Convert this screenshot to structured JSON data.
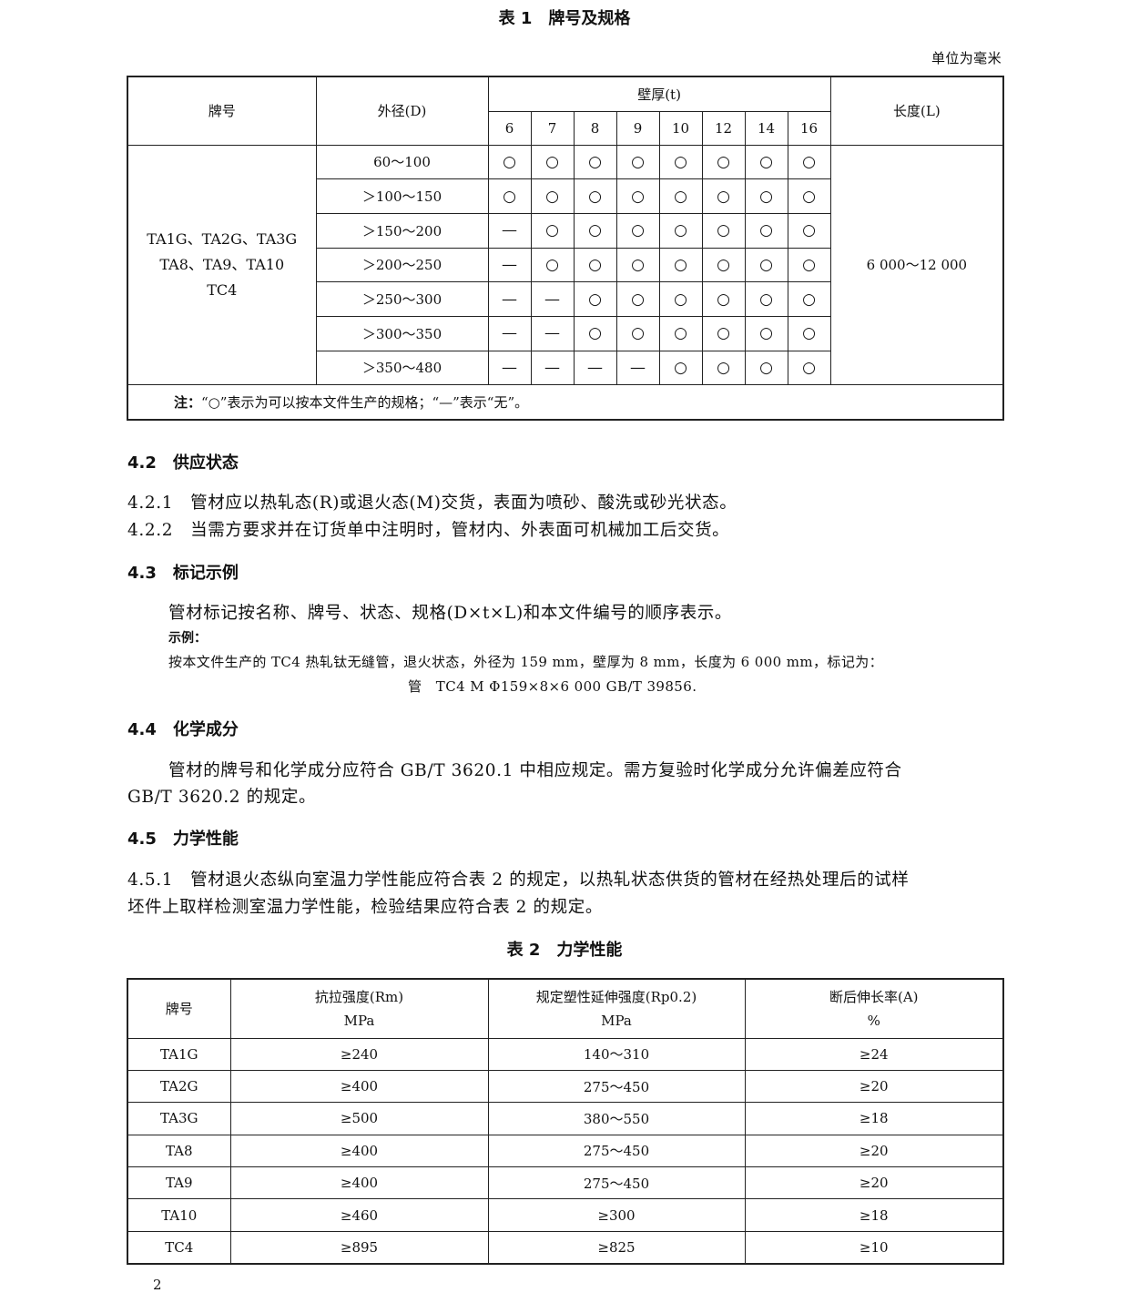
{
  "table1": {
    "title": "表 1　牌号及规格",
    "unit": "单位为毫米",
    "headers": {
      "grade": "牌号",
      "od": "外径(D)",
      "wall": "壁厚(t)",
      "length": "长度(L)"
    },
    "wall_values": [
      "6",
      "7",
      "8",
      "9",
      "10",
      "12",
      "14",
      "16"
    ],
    "grades": [
      "TA1G、TA2G、TA3G",
      "TA8、TA9、TA10",
      "TC4"
    ],
    "length_value": "6 000～12 000",
    "rows": [
      {
        "od": "60～100",
        "cells": [
          "○",
          "○",
          "○",
          "○",
          "○",
          "○",
          "○",
          "○"
        ]
      },
      {
        "od": "＞100～150",
        "cells": [
          "○",
          "○",
          "○",
          "○",
          "○",
          "○",
          "○",
          "○"
        ]
      },
      {
        "od": "＞150～200",
        "cells": [
          "—",
          "○",
          "○",
          "○",
          "○",
          "○",
          "○",
          "○"
        ]
      },
      {
        "od": "＞200～250",
        "cells": [
          "—",
          "○",
          "○",
          "○",
          "○",
          "○",
          "○",
          "○"
        ]
      },
      {
        "od": "＞250～300",
        "cells": [
          "—",
          "—",
          "○",
          "○",
          "○",
          "○",
          "○",
          "○"
        ]
      },
      {
        "od": "＞300～350",
        "cells": [
          "—",
          "—",
          "○",
          "○",
          "○",
          "○",
          "○",
          "○"
        ]
      },
      {
        "od": "＞350～480",
        "cells": [
          "—",
          "—",
          "—",
          "—",
          "○",
          "○",
          "○",
          "○"
        ]
      }
    ],
    "note_label": "注：",
    "note": "“○”表示为可以按本文件生产的规格；“—”表示“无”。"
  },
  "s42": {
    "title": "4.2　供应状态",
    "p1": "4.2.1　管材应以热轧态(R)或退火态(M)交货，表面为喷砂、酸洗或砂光状态。",
    "p2": "4.2.2　当需方要求并在订货单中注明时，管材内、外表面可机械加工后交货。"
  },
  "s43": {
    "title": "4.3　标记示例",
    "p1": "管材标记按名称、牌号、状态、规格(D×t×L)和本文件编号的顺序表示。",
    "example_label": "示例：",
    "example": "按本文件生产的 TC4 热轧钛无缝管，退火状态，外径为 159 mm，壁厚为 8 mm，长度为 6 000 mm，标记为：",
    "marking": "管　TC4 M Φ159×8×6 000 GB/T 39856."
  },
  "s44": {
    "title": "4.4　化学成分",
    "p1a": "管材的牌号和化学成分应符合 GB/T 3620.1 中相应规定。需方复验时化学成分允许偏差应符合",
    "p1b": "GB/T 3620.2 的规定。"
  },
  "s45": {
    "title": "4.5　力学性能",
    "p1a": "4.5.1　管材退火态纵向室温力学性能应符合表 2 的规定，以热轧状态供货的管材在经热处理后的试样",
    "p1b": "坯件上取样检测室温力学性能，检验结果应符合表 2 的规定。"
  },
  "table2": {
    "title": "表 2　力学性能",
    "headers": [
      [
        "牌号",
        ""
      ],
      [
        "抗拉强度(Rm)",
        "MPa"
      ],
      [
        "规定塑性延伸强度(Rp0.2)",
        "MPa"
      ],
      [
        "断后伸长率(A)",
        "%"
      ]
    ],
    "rows": [
      [
        "TA1G",
        "≥240",
        "140～310",
        "≥24"
      ],
      [
        "TA2G",
        "≥400",
        "275～450",
        "≥20"
      ],
      [
        "TA3G",
        "≥500",
        "380～550",
        "≥18"
      ],
      [
        "TA8",
        "≥400",
        "275～450",
        "≥20"
      ],
      [
        "TA9",
        "≥400",
        "275～450",
        "≥20"
      ],
      [
        "TA10",
        "≥460",
        "≥300",
        "≥18"
      ],
      [
        "TC4",
        "≥895",
        "≥825",
        "≥10"
      ]
    ]
  },
  "page_number": "2"
}
